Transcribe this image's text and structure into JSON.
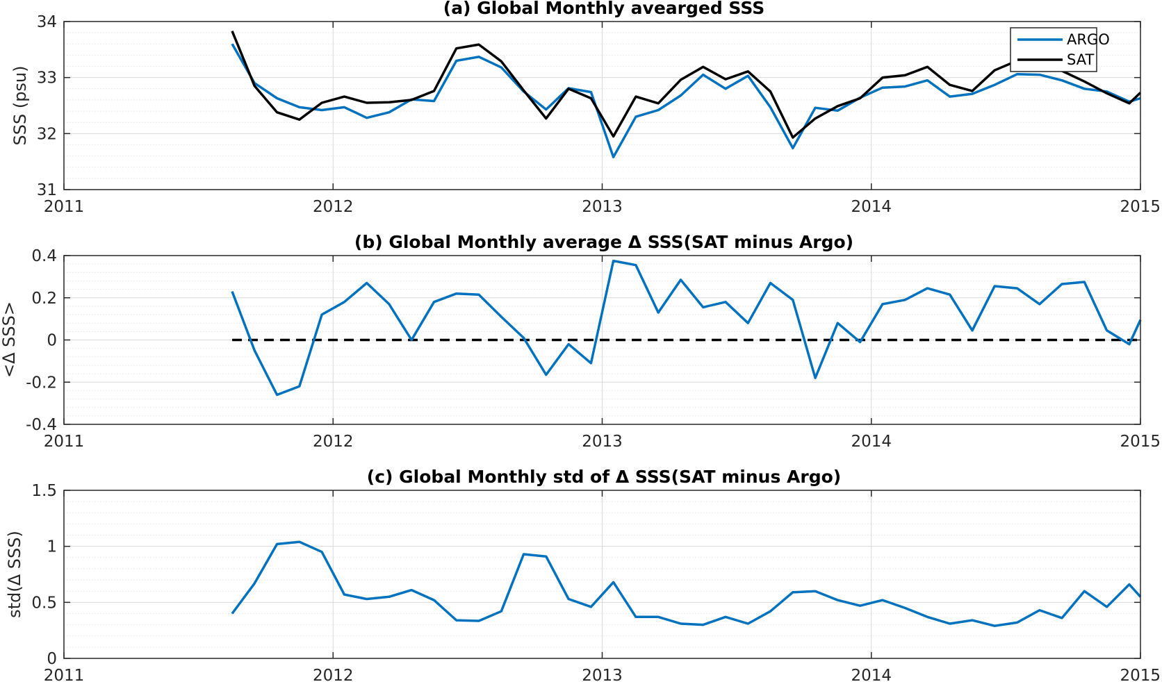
{
  "colors": {
    "argo": "#0072BD",
    "sat": "#000000",
    "grid": "#d9d9d9",
    "axis": "#262626"
  },
  "chart_data": [
    {
      "type": "line",
      "title": "(a) Global Monthly avearged SSS",
      "xlabel": "",
      "ylabel": "SSS (psu)",
      "xlim": [
        2011,
        2015
      ],
      "ylim": [
        31,
        34
      ],
      "xticks": [
        2011,
        2012,
        2013,
        2014,
        2015
      ],
      "xtick_labels": [
        "2011",
        "2012",
        "2013",
        "2014",
        "2015"
      ],
      "yticks": [
        31,
        32,
        33,
        34
      ],
      "ytick_labels": [
        "31",
        "32",
        "33",
        "34"
      ],
      "grid": true,
      "minor_grid": true,
      "legend": {
        "position": "top-right",
        "entries": [
          "ARGO",
          "SAT"
        ]
      },
      "series": [
        {
          "name": "ARGO",
          "color": "#0072BD",
          "x": [
            2011.625,
            2011.7083,
            2011.7917,
            2011.875,
            2011.9583,
            2012.0417,
            2012.125,
            2012.2083,
            2012.2917,
            2012.375,
            2012.4583,
            2012.5417,
            2012.625,
            2012.7083,
            2012.7917,
            2012.875,
            2012.9583,
            2013.0417,
            2013.125,
            2013.2083,
            2013.2917,
            2013.375,
            2013.4583,
            2013.5417,
            2013.625,
            2013.7083,
            2013.7917,
            2013.875,
            2013.9583,
            2014.0417,
            2014.125,
            2014.2083,
            2014.2917,
            2014.375,
            2014.4583,
            2014.5417,
            2014.625,
            2014.7083,
            2014.7917,
            2014.875,
            2014.9583,
            2015.0
          ],
          "values": [
            33.6,
            32.9,
            32.63,
            32.47,
            32.42,
            32.47,
            32.28,
            32.38,
            32.61,
            32.58,
            33.3,
            33.37,
            33.18,
            32.75,
            32.43,
            32.81,
            32.74,
            31.58,
            32.3,
            32.42,
            32.68,
            33.05,
            32.8,
            33.03,
            32.47,
            31.74,
            32.46,
            32.41,
            32.64,
            32.82,
            32.84,
            32.95,
            32.66,
            32.71,
            32.87,
            33.06,
            33.05,
            32.95,
            32.8,
            32.75,
            32.57,
            32.63
          ]
        },
        {
          "name": "SAT",
          "color": "#000000",
          "x": [
            2011.625,
            2011.7083,
            2011.7917,
            2011.875,
            2011.9583,
            2012.0417,
            2012.125,
            2012.2083,
            2012.2917,
            2012.375,
            2012.4583,
            2012.5417,
            2012.625,
            2012.7083,
            2012.7917,
            2012.875,
            2012.9583,
            2013.0417,
            2013.125,
            2013.2083,
            2013.2917,
            2013.375,
            2013.4583,
            2013.5417,
            2013.625,
            2013.7083,
            2013.7917,
            2013.875,
            2013.9583,
            2014.0417,
            2014.125,
            2014.2083,
            2014.2917,
            2014.375,
            2014.4583,
            2014.5417,
            2014.625,
            2014.7083,
            2014.7917,
            2014.875,
            2014.9583,
            2015.0
          ],
          "values": [
            33.83,
            32.85,
            32.38,
            32.25,
            32.55,
            32.66,
            32.55,
            32.56,
            32.6,
            32.76,
            33.52,
            33.59,
            33.29,
            32.77,
            32.27,
            32.8,
            32.63,
            31.95,
            32.66,
            32.54,
            32.96,
            33.19,
            32.97,
            33.11,
            32.75,
            31.93,
            32.27,
            32.49,
            32.63,
            33.0,
            33.04,
            33.19,
            32.87,
            32.76,
            33.13,
            33.3,
            33.29,
            33.12,
            32.93,
            32.72,
            32.54,
            32.73
          ]
        }
      ]
    },
    {
      "type": "line",
      "title": "(b) Global Monthly average Δ SSS(SAT minus Argo)",
      "xlabel": "",
      "ylabel": "<Δ SSS>",
      "xlim": [
        2011,
        2015
      ],
      "ylim": [
        -0.4,
        0.4
      ],
      "xticks": [
        2011,
        2012,
        2013,
        2014,
        2015
      ],
      "xtick_labels": [
        "2011",
        "2012",
        "2013",
        "2014",
        "2015"
      ],
      "yticks": [
        -0.4,
        -0.2,
        0,
        0.2,
        0.4
      ],
      "ytick_labels": [
        "-0.4",
        "-0.2",
        "0",
        "0.2",
        "0.4"
      ],
      "grid": true,
      "minor_grid": true,
      "zero_line": {
        "x": [
          2011.625,
          2015.0
        ],
        "y": 0,
        "style": "dashed",
        "color": "#000000"
      },
      "series": [
        {
          "color": "#0072BD",
          "x": [
            2011.625,
            2011.7083,
            2011.7917,
            2011.875,
            2011.9583,
            2012.0417,
            2012.125,
            2012.2083,
            2012.2917,
            2012.375,
            2012.4583,
            2012.5417,
            2012.625,
            2012.7083,
            2012.7917,
            2012.875,
            2012.9583,
            2013.0417,
            2013.125,
            2013.2083,
            2013.2917,
            2013.375,
            2013.4583,
            2013.5417,
            2013.625,
            2013.7083,
            2013.7917,
            2013.875,
            2013.9583,
            2014.0417,
            2014.125,
            2014.2083,
            2014.2917,
            2014.375,
            2014.4583,
            2014.5417,
            2014.625,
            2014.7083,
            2014.7917,
            2014.875,
            2014.9583,
            2015.0
          ],
          "values": [
            0.23,
            -0.05,
            -0.26,
            -0.22,
            0.12,
            0.18,
            0.27,
            0.17,
            0.0,
            0.18,
            0.22,
            0.215,
            0.11,
            0.01,
            -0.165,
            -0.02,
            -0.11,
            0.375,
            0.355,
            0.13,
            0.285,
            0.155,
            0.18,
            0.08,
            0.27,
            0.19,
            -0.18,
            0.08,
            -0.01,
            0.17,
            0.19,
            0.245,
            0.215,
            0.045,
            0.255,
            0.245,
            0.17,
            0.265,
            0.275,
            0.045,
            -0.02,
            0.095
          ]
        }
      ]
    },
    {
      "type": "line",
      "title": "(c) Global Monthly std of Δ SSS(SAT minus Argo)",
      "xlabel": "",
      "ylabel": "std(Δ SSS)",
      "xlim": [
        2011,
        2015
      ],
      "ylim": [
        0,
        1.5
      ],
      "xticks": [
        2011,
        2012,
        2013,
        2014,
        2015
      ],
      "xtick_labels": [
        "2011",
        "2012",
        "2013",
        "2014",
        "2015"
      ],
      "yticks": [
        0,
        0.5,
        1,
        1.5
      ],
      "ytick_labels": [
        "0",
        "0.5",
        "1",
        "1.5"
      ],
      "grid": true,
      "minor_grid": true,
      "series": [
        {
          "color": "#0072BD",
          "x": [
            2011.625,
            2011.7083,
            2011.7917,
            2011.875,
            2011.9583,
            2012.0417,
            2012.125,
            2012.2083,
            2012.2917,
            2012.375,
            2012.4583,
            2012.5417,
            2012.625,
            2012.7083,
            2012.7917,
            2012.875,
            2012.9583,
            2013.0417,
            2013.125,
            2013.2083,
            2013.2917,
            2013.375,
            2013.4583,
            2013.5417,
            2013.625,
            2013.7083,
            2013.7917,
            2013.875,
            2013.9583,
            2014.0417,
            2014.125,
            2014.2083,
            2014.2917,
            2014.375,
            2014.4583,
            2014.5417,
            2014.625,
            2014.7083,
            2014.7917,
            2014.875,
            2014.9583,
            2015.0
          ],
          "values": [
            0.4,
            0.67,
            1.02,
            1.04,
            0.95,
            0.57,
            0.53,
            0.55,
            0.61,
            0.52,
            0.34,
            0.335,
            0.42,
            0.93,
            0.91,
            0.53,
            0.46,
            0.68,
            0.37,
            0.37,
            0.31,
            0.3,
            0.37,
            0.31,
            0.42,
            0.59,
            0.6,
            0.52,
            0.47,
            0.52,
            0.45,
            0.37,
            0.31,
            0.34,
            0.29,
            0.32,
            0.43,
            0.36,
            0.6,
            0.46,
            0.66,
            0.55
          ]
        }
      ]
    }
  ]
}
